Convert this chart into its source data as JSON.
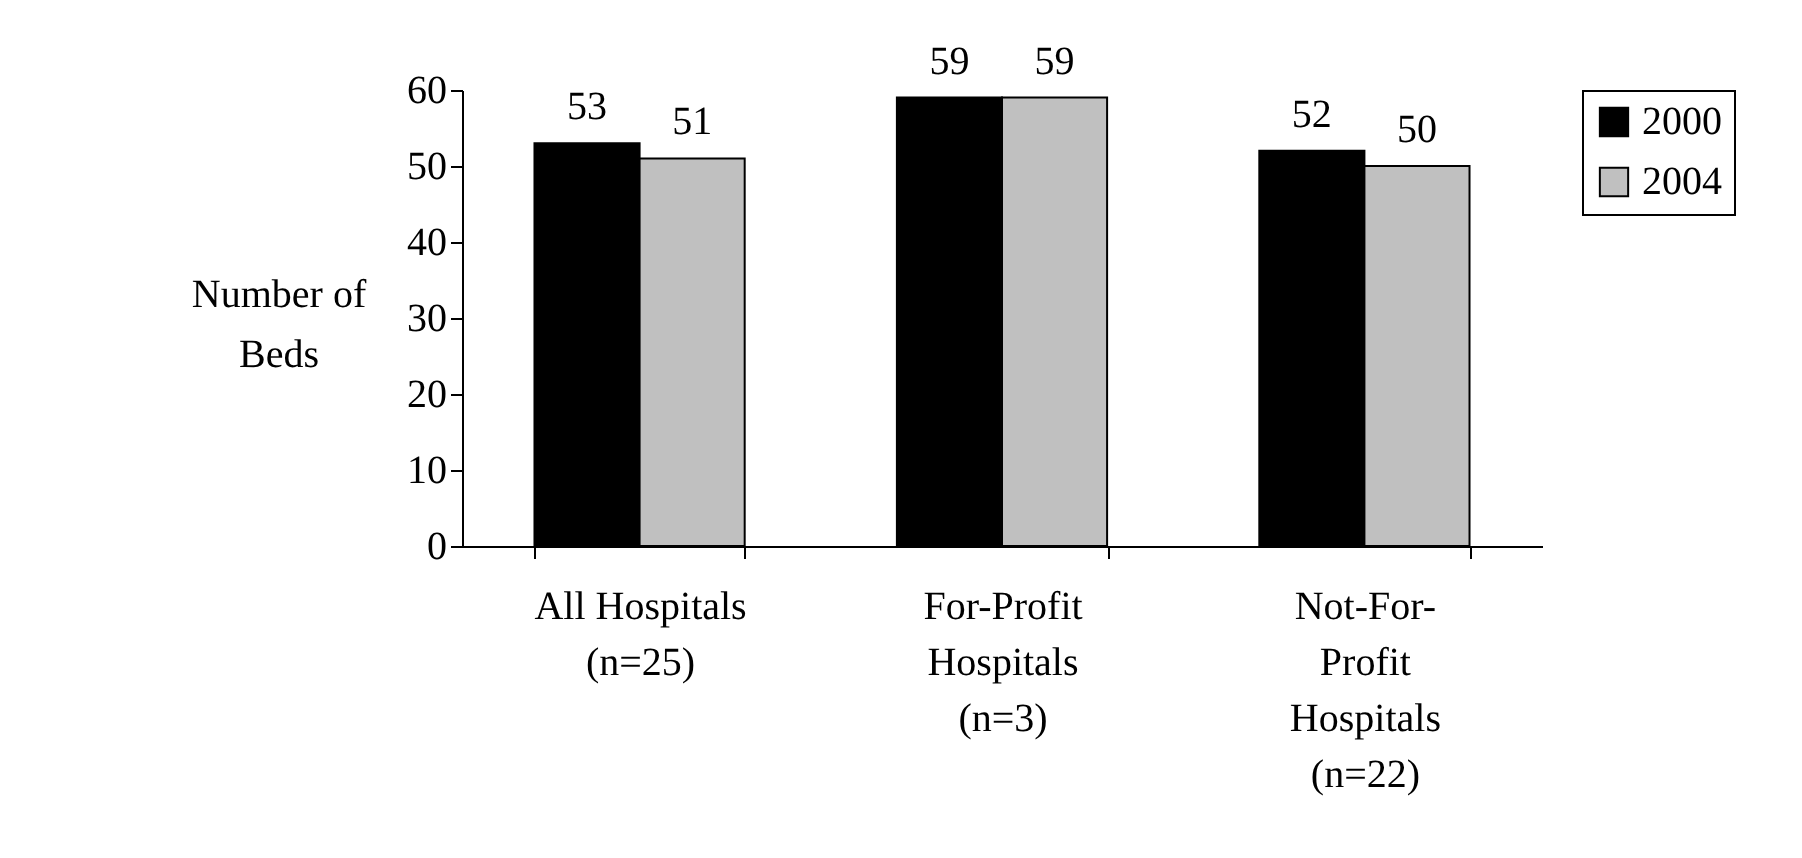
{
  "chart_data": {
    "type": "bar",
    "ylabel": "Number of\nBeds",
    "categories": [
      "All Hospitals\n(n=25)",
      "For-Profit\nHospitals\n(n=3)",
      "Not-For-\nProfit\nHospitals\n(n=22)"
    ],
    "series": [
      {
        "name": "2000",
        "color": "#000000",
        "values": [
          53,
          59,
          52
        ]
      },
      {
        "name": "2004",
        "color": "#c0c0c0",
        "values": [
          51,
          59,
          50
        ]
      }
    ],
    "ylim": [
      0,
      60
    ],
    "yticks": [
      0,
      10,
      20,
      30,
      40,
      50,
      60
    ],
    "data_labels": true,
    "legend": "right",
    "grid": false
  }
}
